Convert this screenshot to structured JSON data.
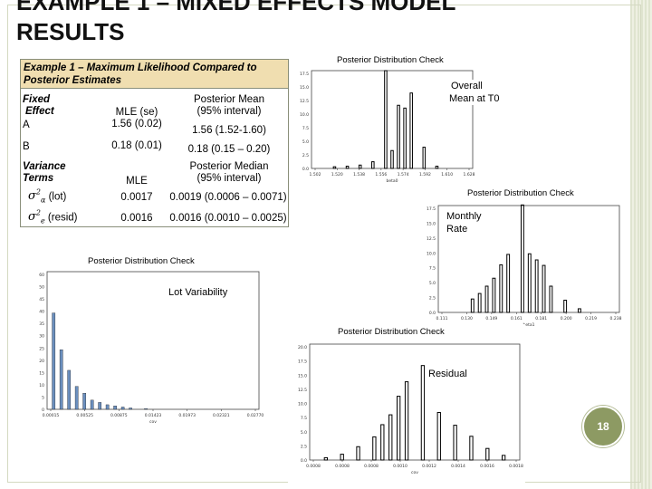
{
  "slide": {
    "title_line1": "EXAMPLE 1 – MIXED EFFECTS MODEL",
    "title_line2": "RESULTS",
    "slide_number": "18"
  },
  "table": {
    "header": "Example 1 – Maximum Likelihood Compared to Posterior Estimates",
    "fixed": {
      "heading_line1": "Fixed",
      "heading_line2": "Effect",
      "mle_header": "MLE (se)",
      "post_header_line1": "Posterior Mean",
      "post_header_line2": "(95% interval)",
      "rows": [
        {
          "label": "A",
          "mle": "1.56 (0.02)",
          "posterior": "1.56 (1.52-1.60)"
        },
        {
          "label": "B",
          "mle": "0.18 (0.01)",
          "posterior": "0.18 (0.15 – 0.20)"
        }
      ]
    },
    "variance": {
      "heading_line1": "Variance",
      "heading_line2": "Terms",
      "mle_header": "MLE",
      "post_header_line1": "Posterior Median",
      "post_header_line2": "(95% interval)",
      "rows": [
        {
          "label": "(lot)",
          "symbol_sub": "α",
          "mle": "0.0017",
          "posterior": "0.0019 (0.0006 – 0.0071)"
        },
        {
          "label": "(resid)",
          "symbol_sub": "e",
          "mle": "0.0016",
          "posterior": "0.0016 (0.0010 – 0.0025)"
        }
      ]
    }
  },
  "plots": [
    {
      "id": "overall-mean",
      "title": "Posterior Distribution Check",
      "annotation_line1": "Overall",
      "annotation_line2": "Mean at T0",
      "bar_color": "#000000",
      "chart_data": {
        "type": "bar",
        "title": "Posterior Distribution Check",
        "xlabel": "beta0",
        "x_ticks": [
          "1.502",
          "1.520",
          "1.538",
          "1.556",
          "1.574",
          "1.592",
          "1.610",
          "1.628"
        ],
        "y_ticks": [
          "17.5",
          "15.0",
          "12.5",
          "10.0",
          "7.5",
          "5.0",
          "2.5",
          "0.0"
        ],
        "x": [
          1.52,
          1.53,
          1.54,
          1.55,
          1.56,
          1.565,
          1.57,
          1.575,
          1.58,
          1.59,
          1.6
        ],
        "values": [
          0.3,
          0.4,
          0.6,
          1.2,
          17.5,
          3.2,
          11.3,
          10.8,
          13.5,
          3.8,
          0.4
        ],
        "xlim": [
          1.502,
          1.628
        ],
        "ylim": [
          0,
          17.5
        ]
      }
    },
    {
      "id": "monthly-rate",
      "title": "Posterior Distribution Check",
      "annotation_line1": "Monthly",
      "annotation_line2": "Rate",
      "bar_color": "#000000",
      "chart_data": {
        "type": "bar",
        "title": "Posterior Distribution Check",
        "xlabel": "beta1",
        "x_ticks": [
          "0.111",
          "0.130",
          "0.149",
          "0.161",
          "0.181",
          "0.200",
          "0.219",
          "0.238"
        ],
        "y_ticks": [
          "17.5",
          "15.0",
          "12.5",
          "10.0",
          "7.5",
          "5.0",
          "2.5",
          "0.0"
        ],
        "x": [
          0.135,
          0.14,
          0.145,
          0.15,
          0.155,
          0.16,
          0.17,
          0.175,
          0.18,
          0.185,
          0.19,
          0.2,
          0.21
        ],
        "values": [
          2.2,
          3.1,
          4.3,
          5.6,
          7.8,
          9.5,
          17.6,
          9.6,
          8.6,
          7.7,
          4.3,
          2.0,
          0.6
        ],
        "xlim": [
          0.111,
          0.238
        ],
        "ylim": [
          0,
          17.5
        ]
      }
    },
    {
      "id": "lot-variability",
      "title": "Posterior Distribution Check",
      "annotation_line1": "Lot Variability",
      "annotation_line2": "",
      "bar_color": "#6b8fbe",
      "chart_data": {
        "type": "bar",
        "title": "Posterior Distribution Check",
        "xlabel": "cov",
        "x_ticks": [
          "0.00015",
          "0.00525",
          "0.00875",
          "0.01423",
          "0.01973",
          "0.02321",
          "0.02770"
        ],
        "y_ticks": [
          "60",
          "50",
          "45",
          "40",
          "35",
          "30",
          "25",
          "20",
          "15",
          "10",
          "5",
          "0"
        ],
        "x": [
          0.001,
          0.002,
          0.003,
          0.004,
          0.005,
          0.006,
          0.007,
          0.008,
          0.009,
          0.01,
          0.011,
          0.013
        ],
        "values": [
          42,
          26,
          17,
          10,
          7,
          4,
          3,
          2,
          1.5,
          1,
          0.6,
          0.3
        ],
        "xlim": [
          0.00015,
          0.0277
        ],
        "ylim": [
          0,
          60
        ]
      }
    },
    {
      "id": "residual",
      "title": "Posterior Distribution Check",
      "annotation_line1": "Residual",
      "annotation_line2": "",
      "bar_color": "#000000",
      "chart_data": {
        "type": "bar",
        "title": "Posterior Distribution Check",
        "xlabel": "cov",
        "x_ticks": [
          "0.0008",
          "0.0008",
          "0.0008",
          "0.0010",
          "0.0012",
          "0.0014",
          "0.0016",
          "0.0018"
        ],
        "y_ticks": [
          "20.0",
          "17.5",
          "15.0",
          "12.5",
          "10.0",
          "7.5",
          "5.0",
          "2.5",
          "0.0"
        ],
        "x": [
          0.0009,
          0.001,
          0.0011,
          0.0012,
          0.00125,
          0.0013,
          0.00135,
          0.0014,
          0.0015,
          0.0016,
          0.0017,
          0.0018,
          0.0019,
          0.002
        ],
        "values": [
          0.4,
          1.0,
          2.3,
          4.0,
          6.1,
          7.8,
          11.0,
          13.5,
          16.3,
          8.2,
          6.0,
          4.1,
          2.0,
          0.8
        ],
        "xlim": [
          0.0008,
          0.0021
        ],
        "ylim": [
          0,
          20
        ]
      }
    }
  ]
}
